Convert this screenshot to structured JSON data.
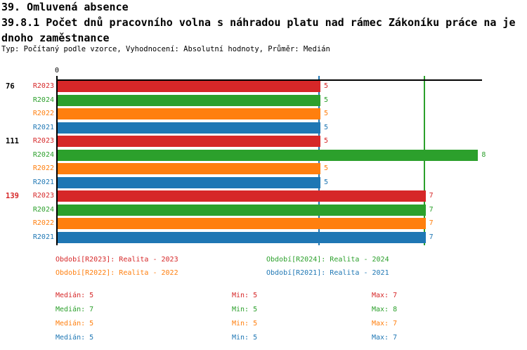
{
  "header": {
    "title_line1": "39. Omluvená absence",
    "title_line2": "39.8.1 Počet dnů pracovního volna s náhradou platu nad rámec Zákoníku práce na je",
    "title_line3": "dnoho zaměstnance",
    "meta": "Typ: Počítaný podle vzorce, Vyhodnocení: Absolutní hodnoty, Průměr: Medián"
  },
  "chart_data": {
    "type": "bar",
    "orientation": "horizontal",
    "value_axis": {
      "origin_tick_label": "0",
      "min": 0,
      "max": 8.1,
      "grid": false
    },
    "series": [
      {
        "id": "R2023",
        "name": "Realita - 2023",
        "color": "#d62728"
      },
      {
        "id": "R2024",
        "name": "Realita - 2024",
        "color": "#2ca02c"
      },
      {
        "id": "R2022",
        "name": "Realita - 2022",
        "color": "#ff7f0e"
      },
      {
        "id": "R2021",
        "name": "Realita - 2021",
        "color": "#1f77b4"
      }
    ],
    "groups": [
      {
        "label": "76",
        "label_color": "#000000",
        "values": [
          5,
          5,
          5,
          5
        ]
      },
      {
        "label": "111",
        "label_color": "#000000",
        "values": [
          5,
          8,
          5,
          5
        ]
      },
      {
        "label": "139",
        "label_color": "#d62728",
        "values": [
          7,
          7,
          7,
          7
        ]
      }
    ],
    "median_lines": [
      {
        "value": 5,
        "color": "#1f77b4"
      },
      {
        "value": 7,
        "color": "#2ca02c"
      }
    ],
    "legend": [
      {
        "text": "Období[R2023]: Realita - 2023",
        "color": "#d62728"
      },
      {
        "text": "Období[R2024]: Realita - 2024",
        "color": "#2ca02c"
      },
      {
        "text": "Období[R2022]: Realita - 2022",
        "color": "#ff7f0e"
      },
      {
        "text": "Období[R2021]: Realita - 2021",
        "color": "#1f77b4"
      }
    ],
    "stats": [
      {
        "color": "#d62728",
        "median": "Medián: 5",
        "min": "Min: 5",
        "max": "Max: 7"
      },
      {
        "color": "#2ca02c",
        "median": "Medián: 7",
        "min": "Min: 5",
        "max": "Max: 8"
      },
      {
        "color": "#ff7f0e",
        "median": "Medián: 5",
        "min": "Min: 5",
        "max": "Max: 7"
      },
      {
        "color": "#1f77b4",
        "median": "Medián: 5",
        "min": "Min: 5",
        "max": "Max: 7"
      }
    ]
  }
}
